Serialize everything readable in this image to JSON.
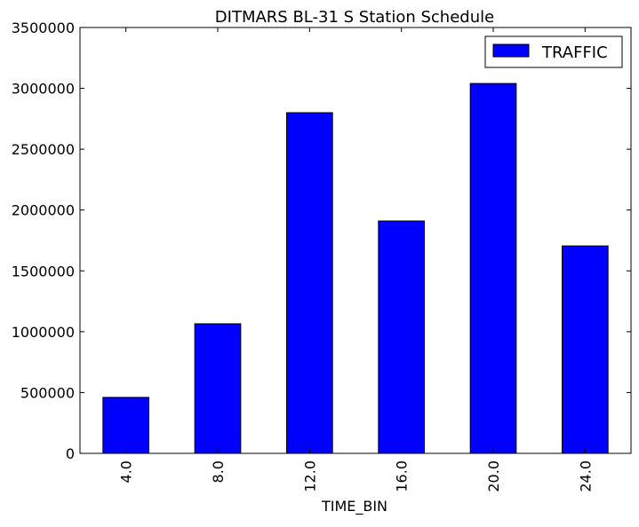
{
  "chart_data": {
    "type": "bar",
    "title": "DITMARS BL-31 S Station Schedule",
    "xlabel": "TIME_BIN",
    "ylabel": "",
    "categories": [
      "4.0",
      "8.0",
      "12.0",
      "16.0",
      "20.0",
      "24.0"
    ],
    "series": [
      {
        "name": "TRAFFIC",
        "color": "#0000ff",
        "values": [
          460000,
          1065000,
          2800000,
          1910000,
          3040000,
          1705000
        ]
      }
    ],
    "ylim": [
      0,
      3500000
    ],
    "yticks": [
      0,
      500000,
      1000000,
      1500000,
      2000000,
      2500000,
      3000000,
      3500000
    ],
    "ytick_labels": [
      "0",
      "500000",
      "1000000",
      "1500000",
      "2000000",
      "2500000",
      "3000000",
      "3500000"
    ],
    "xtick_rotation": "vertical",
    "grid": false,
    "legend": {
      "position": "top-right",
      "entries": [
        "TRAFFIC"
      ]
    }
  }
}
